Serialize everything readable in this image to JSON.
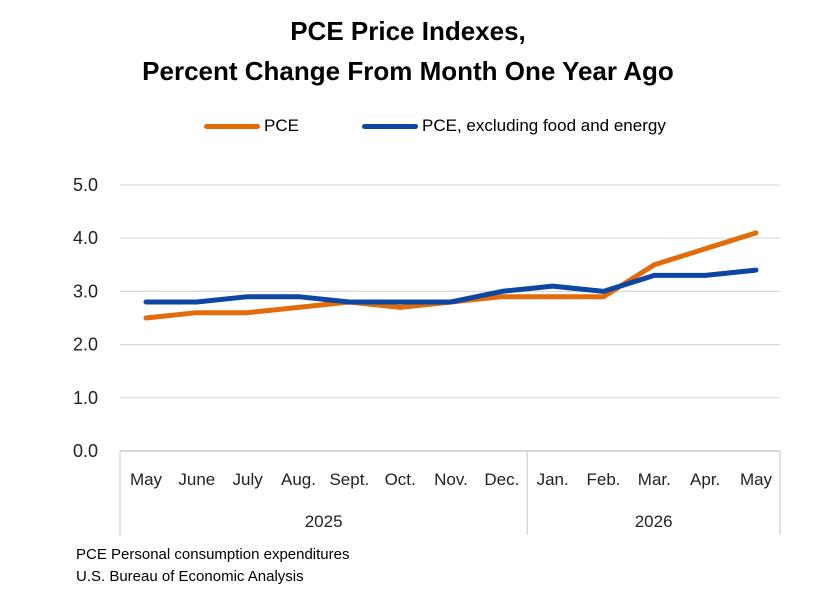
{
  "chart_data": {
    "type": "line",
    "title": "PCE Price Indexes,",
    "subtitle": "Percent Change From Month One Year Ago",
    "categories": [
      "May",
      "June",
      "July",
      "Aug.",
      "Sept.",
      "Oct.",
      "Nov.",
      "Dec.",
      "Jan.",
      "Feb.",
      "Mar.",
      "Apr.",
      "May"
    ],
    "year_groups": [
      {
        "label": "2025",
        "start": 0,
        "end": 7
      },
      {
        "label": "2026",
        "start": 8,
        "end": 12
      }
    ],
    "series": [
      {
        "name": "PCE",
        "color": "#E36C0A",
        "values": [
          2.5,
          2.6,
          2.6,
          2.7,
          2.8,
          2.7,
          2.8,
          2.9,
          2.9,
          2.9,
          3.5,
          3.8,
          4.1
        ]
      },
      {
        "name": "PCE, excluding food and energy",
        "color": "#0D47A1",
        "values": [
          2.8,
          2.8,
          2.9,
          2.9,
          2.8,
          2.8,
          2.8,
          3.0,
          3.1,
          3.0,
          3.3,
          3.3,
          3.4
        ]
      }
    ],
    "yticks": [
      "0.0",
      "1.0",
      "2.0",
      "3.0",
      "4.0",
      "5.0"
    ],
    "ylim": [
      0,
      5
    ],
    "grid": true,
    "legend_position": "top"
  },
  "footer": {
    "line1": "PCE Personal consumption expenditures",
    "line2": "U.S. Bureau of Economic Analysis"
  }
}
